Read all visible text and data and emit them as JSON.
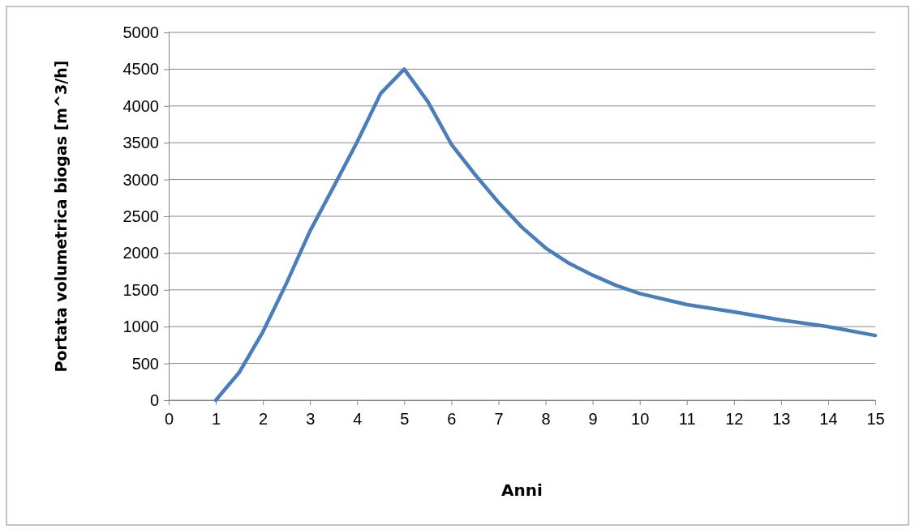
{
  "chart_data": {
    "type": "line",
    "xlabel": "Anni",
    "ylabel": "Portata volumetrica biogas [m^3/h]",
    "x": [
      1,
      1.5,
      2,
      2.5,
      3,
      3.5,
      4,
      4.5,
      5,
      5.5,
      6,
      6.5,
      7,
      7.5,
      8,
      8.5,
      9,
      9.5,
      10,
      11,
      12,
      13,
      14,
      15
    ],
    "series": [
      {
        "color": "#4a7ebb",
        "values": [
          0,
          380,
          930,
          1590,
          2300,
          2900,
          3510,
          4170,
          4500,
          4060,
          3480,
          3070,
          2690,
          2350,
          2070,
          1860,
          1700,
          1560,
          1450,
          1300,
          1200,
          1090,
          1000,
          880
        ]
      }
    ],
    "xlim": [
      0,
      15
    ],
    "xticks": [
      0,
      1,
      2,
      3,
      4,
      5,
      6,
      7,
      8,
      9,
      10,
      11,
      12,
      13,
      14,
      15
    ],
    "ylim": [
      0,
      5000
    ],
    "yticks": [
      0,
      500,
      1000,
      1500,
      2000,
      2500,
      3000,
      3500,
      4000,
      4500,
      5000
    ],
    "grid": "y",
    "marker": "none",
    "line_style": "solid"
  }
}
